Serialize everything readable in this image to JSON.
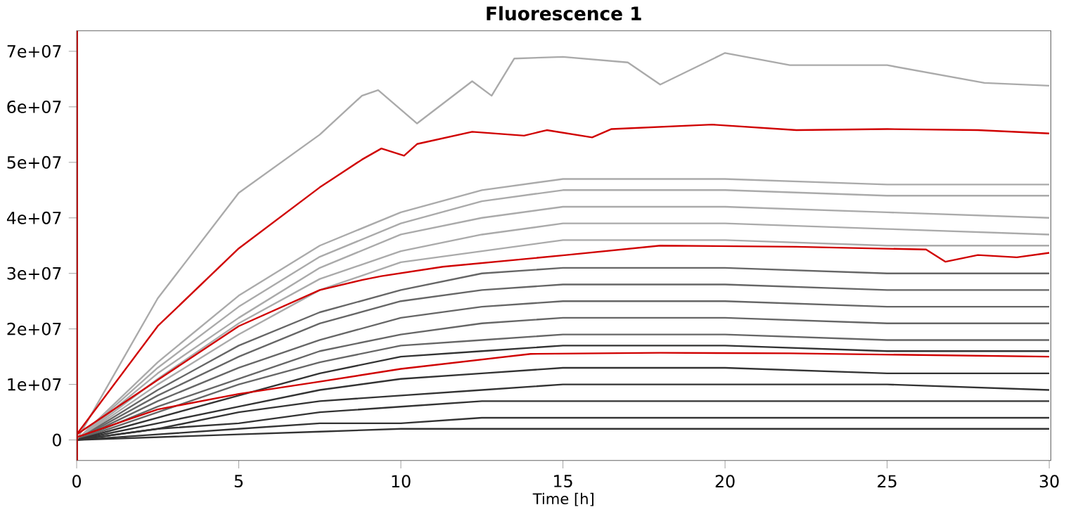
{
  "chart_data": {
    "type": "line",
    "title": "Fluorescence 1",
    "xlabel": "Time [h]",
    "xlim": [
      0,
      30.05
    ],
    "ylim": [
      -3700000,
      73700000
    ],
    "xticks": [
      0,
      5,
      10,
      15,
      20,
      25,
      30
    ],
    "yticks": [
      0,
      {
        "value": 10000000,
        "label": "1e+07"
      },
      {
        "value": 20000000,
        "label": "2e+07"
      },
      {
        "value": 30000000,
        "label": "3e+07"
      },
      {
        "value": 40000000,
        "label": "4e+07"
      },
      {
        "value": 50000000,
        "label": "5e+07"
      },
      {
        "value": 60000000,
        "label": "6e+07"
      },
      {
        "value": 70000000,
        "label": "7e+07"
      }
    ],
    "grid": false,
    "marker": "none",
    "line_style": "solid",
    "x": [
      0,
      2.5,
      5,
      7.5,
      10,
      12.5,
      15,
      20,
      25,
      30
    ],
    "series": [
      {
        "color": "#aaaaaa",
        "values": [
          0,
          14000000,
          26000000,
          35000000,
          41000000,
          45000000,
          47000000,
          47000000,
          46000000,
          46000000
        ]
      },
      {
        "color": "#aaaaaa",
        "values": [
          0,
          13000000,
          24000000,
          33000000,
          39000000,
          43000000,
          45000000,
          45000000,
          44000000,
          44000000
        ]
      },
      {
        "color": "#aaaaaa",
        "values": [
          0,
          12000000,
          22000000,
          31000000,
          37000000,
          40000000,
          42000000,
          42000000,
          41000000,
          40000000
        ]
      },
      {
        "color": "#aaaaaa",
        "values": [
          0,
          11000000,
          21000000,
          29000000,
          34000000,
          37000000,
          39000000,
          39000000,
          38000000,
          37000000
        ]
      },
      {
        "color": "#aaaaaa",
        "values": [
          0,
          10000000,
          19000000,
          27000000,
          32000000,
          34000000,
          36000000,
          36000000,
          35000000,
          35000000
        ]
      },
      {
        "color": "#666666",
        "values": [
          0,
          9000000,
          17000000,
          23000000,
          27000000,
          30000000,
          31000000,
          31000000,
          30000000,
          30000000
        ]
      },
      {
        "color": "#666666",
        "values": [
          0,
          8000000,
          15000000,
          21000000,
          25000000,
          27000000,
          28000000,
          28000000,
          27000000,
          27000000
        ]
      },
      {
        "color": "#666666",
        "values": [
          0,
          7000000,
          13000000,
          18000000,
          22000000,
          24000000,
          25000000,
          25000000,
          24000000,
          24000000
        ]
      },
      {
        "color": "#666666",
        "values": [
          0,
          6000000,
          11000000,
          16000000,
          19000000,
          21000000,
          22000000,
          22000000,
          21000000,
          21000000
        ]
      },
      {
        "color": "#666666",
        "values": [
          0,
          5000000,
          10000000,
          14000000,
          17000000,
          18000000,
          19000000,
          19000000,
          18000000,
          18000000
        ]
      },
      {
        "color": "#333333",
        "values": [
          0,
          4000000,
          8000000,
          12000000,
          15000000,
          16000000,
          17000000,
          17000000,
          16000000,
          16000000
        ]
      },
      {
        "color": "#333333",
        "values": [
          0,
          3000000,
          6000000,
          9000000,
          11000000,
          12000000,
          13000000,
          13000000,
          12000000,
          12000000
        ]
      },
      {
        "color": "#333333",
        "values": [
          0,
          2000000,
          5000000,
          7000000,
          8000000,
          9000000,
          10000000,
          10000000,
          10000000,
          9000000
        ]
      },
      {
        "color": "#333333",
        "values": [
          0,
          2000000,
          3000000,
          5000000,
          6000000,
          7000000,
          7000000,
          7000000,
          7000000,
          7000000
        ]
      },
      {
        "color": "#333333",
        "values": [
          0,
          1000000,
          2000000,
          3000000,
          3000000,
          4000000,
          4000000,
          4000000,
          4000000,
          4000000
        ]
      },
      {
        "color": "#333333",
        "values": [
          0,
          500000,
          1000000,
          1500000,
          2000000,
          2000000,
          2000000,
          2000000,
          2000000,
          2000000
        ]
      },
      {
        "color": "#aaaaaa",
        "x": [
          0,
          2.5,
          5,
          7.5,
          8.8,
          9.3,
          10.5,
          12.2,
          12.8,
          13.5,
          15,
          17,
          18,
          20,
          22,
          25,
          28,
          30
        ],
        "values": [
          0,
          25500000,
          44500000,
          55000000,
          62000000,
          63000000,
          57000000,
          64600000,
          62000000,
          68700000,
          69000000,
          68000000,
          64000000,
          69700000,
          67500000,
          67500000,
          64300000,
          63800000
        ]
      },
      {
        "color": "#d00000",
        "x": [
          0,
          2.5,
          5,
          7.5,
          8.8,
          9.4,
          10.1,
          10.5,
          12.2,
          13.8,
          14.5,
          15.9,
          16.5,
          19.6,
          22.2,
          25,
          27.8,
          30
        ],
        "values": [
          1000000,
          20500000,
          34500000,
          45500000,
          50500000,
          52500000,
          51200000,
          53300000,
          55500000,
          54800000,
          55800000,
          54500000,
          56000000,
          56800000,
          55800000,
          56000000,
          55800000,
          55200000
        ]
      },
      {
        "color": "#d00000",
        "x": [
          0,
          2.5,
          5,
          7.5,
          8.8,
          9.4,
          11.3,
          15.1,
          18,
          22.2,
          26.2,
          26.8,
          27.8,
          29,
          30
        ],
        "values": [
          1000000,
          10800000,
          20500000,
          27000000,
          28800000,
          29500000,
          31200000,
          33300000,
          35000000,
          34800000,
          34300000,
          32100000,
          33300000,
          32900000,
          33700000
        ]
      },
      {
        "color": "#d00000",
        "x": [
          0,
          2.5,
          5,
          7.5,
          10,
          14,
          18,
          22,
          26,
          30
        ],
        "values": [
          500000,
          5500000,
          8300000,
          10500000,
          12800000,
          15500000,
          15700000,
          15600000,
          15300000,
          15000000
        ]
      }
    ]
  }
}
